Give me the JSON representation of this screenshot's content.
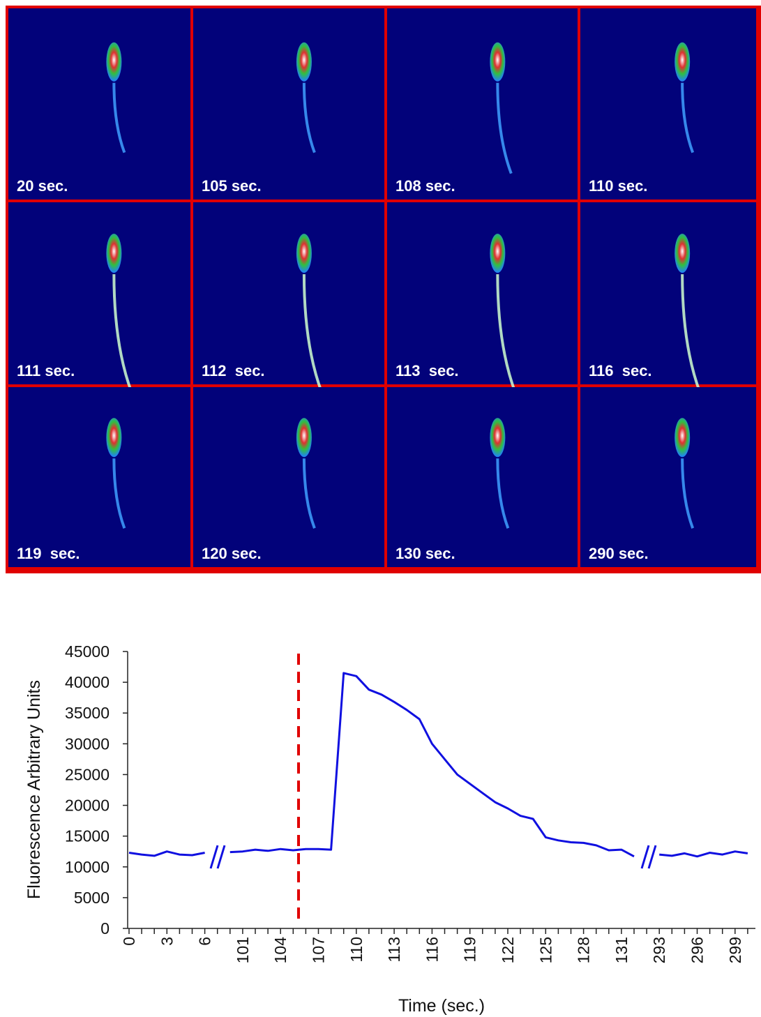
{
  "panels": [
    {
      "label": "20 sec."
    },
    {
      "label": "105 sec."
    },
    {
      "label": "108 sec."
    },
    {
      "label": "110 sec."
    },
    {
      "label": "111 sec."
    },
    {
      "label": "112  sec."
    },
    {
      "label": "113  sec."
    },
    {
      "label": "116  sec."
    },
    {
      "label": "119  sec."
    },
    {
      "label": "120 sec."
    },
    {
      "label": "130 sec."
    },
    {
      "label": "290 sec."
    }
  ],
  "chart_data": {
    "type": "line",
    "x_label": "Time (sec.)",
    "y_label": "Fluorescence Arbitrary Units",
    "categories": [
      "0",
      null,
      null,
      "3",
      null,
      null,
      "6",
      null,
      null,
      "101",
      null,
      null,
      "104",
      null,
      null,
      "107",
      null,
      null,
      "110",
      null,
      null,
      "113",
      null,
      null,
      "116",
      null,
      null,
      "119",
      null,
      null,
      "122",
      null,
      null,
      "125",
      null,
      null,
      "128",
      null,
      null,
      "131",
      null,
      null,
      "293",
      null,
      null,
      "296",
      null,
      null,
      "299",
      null
    ],
    "values": [
      12300,
      12000,
      11800,
      12500,
      12000,
      11900,
      12300,
      null,
      12400,
      12500,
      12800,
      12600,
      12900,
      12700,
      12900,
      12900,
      12800,
      41500,
      41000,
      38800,
      38000,
      36800,
      35500,
      34000,
      30000,
      27500,
      25000,
      23500,
      22000,
      20500,
      19500,
      18300,
      17800,
      14800,
      14300,
      14000,
      13900,
      13500,
      12700,
      12800,
      11700,
      null,
      12000,
      11800,
      12200,
      11700,
      12300,
      12000,
      12500,
      12200
    ],
    "color": "#1010e0",
    "ylim": [
      0,
      45000
    ],
    "yticks": [
      0,
      5000,
      10000,
      15000,
      20000,
      25000,
      30000,
      35000,
      40000,
      45000
    ]
  }
}
